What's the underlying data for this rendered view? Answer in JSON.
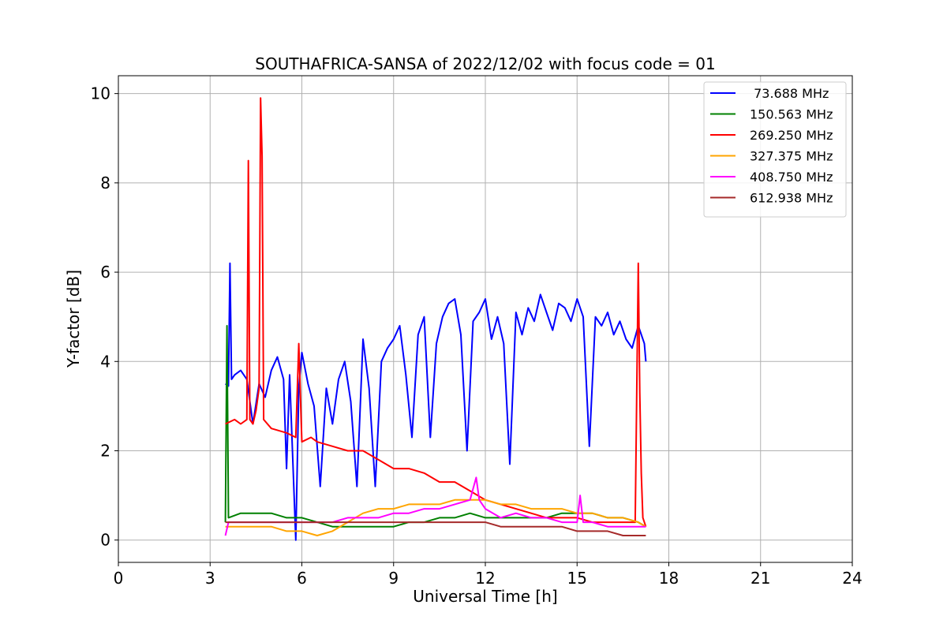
{
  "chart_data": {
    "type": "line",
    "title": "SOUTHAFRICA-SANSA of 2022/12/02 with focus code = 01",
    "xlabel": "Universal Time [h]",
    "ylabel": "Y-factor [dB]",
    "xlim": [
      0,
      24
    ],
    "ylim": [
      -0.5,
      10.4
    ],
    "xticks": [
      0,
      3,
      6,
      9,
      12,
      15,
      18,
      21,
      24
    ],
    "yticks": [
      0,
      2,
      4,
      6,
      8,
      10
    ],
    "grid": true,
    "legend_position": "top-right",
    "series": [
      {
        "name": " 73.688 MHz",
        "color": "#0000ff",
        "points": [
          [
            3.5,
            3.5
          ],
          [
            3.6,
            3.45
          ],
          [
            3.65,
            6.2
          ],
          [
            3.7,
            3.6
          ],
          [
            3.8,
            3.7
          ],
          [
            4.0,
            3.8
          ],
          [
            4.2,
            3.6
          ],
          [
            4.4,
            2.6
          ],
          [
            4.6,
            3.5
          ],
          [
            4.8,
            3.2
          ],
          [
            5.0,
            3.8
          ],
          [
            5.2,
            4.1
          ],
          [
            5.4,
            3.6
          ],
          [
            5.5,
            1.6
          ],
          [
            5.6,
            3.7
          ],
          [
            5.8,
            0.0
          ],
          [
            5.9,
            3.4
          ],
          [
            6.0,
            4.2
          ],
          [
            6.2,
            3.5
          ],
          [
            6.4,
            3.0
          ],
          [
            6.6,
            1.2
          ],
          [
            6.8,
            3.4
          ],
          [
            7.0,
            2.6
          ],
          [
            7.2,
            3.6
          ],
          [
            7.4,
            4.0
          ],
          [
            7.6,
            3.1
          ],
          [
            7.8,
            1.2
          ],
          [
            8.0,
            4.5
          ],
          [
            8.2,
            3.4
          ],
          [
            8.4,
            1.2
          ],
          [
            8.6,
            4.0
          ],
          [
            8.8,
            4.3
          ],
          [
            9.0,
            4.5
          ],
          [
            9.2,
            4.8
          ],
          [
            9.4,
            3.7
          ],
          [
            9.6,
            2.3
          ],
          [
            9.8,
            4.6
          ],
          [
            10.0,
            5.0
          ],
          [
            10.2,
            2.3
          ],
          [
            10.4,
            4.4
          ],
          [
            10.6,
            5.0
          ],
          [
            10.8,
            5.3
          ],
          [
            11.0,
            5.4
          ],
          [
            11.2,
            4.6
          ],
          [
            11.4,
            2.0
          ],
          [
            11.6,
            4.9
          ],
          [
            11.8,
            5.1
          ],
          [
            12.0,
            5.4
          ],
          [
            12.2,
            4.5
          ],
          [
            12.4,
            5.0
          ],
          [
            12.6,
            4.4
          ],
          [
            12.8,
            1.7
          ],
          [
            13.0,
            5.1
          ],
          [
            13.2,
            4.6
          ],
          [
            13.4,
            5.2
          ],
          [
            13.6,
            4.9
          ],
          [
            13.8,
            5.5
          ],
          [
            14.0,
            5.1
          ],
          [
            14.2,
            4.7
          ],
          [
            14.4,
            5.3
          ],
          [
            14.6,
            5.2
          ],
          [
            14.8,
            4.9
          ],
          [
            15.0,
            5.4
          ],
          [
            15.2,
            5.0
          ],
          [
            15.4,
            2.1
          ],
          [
            15.6,
            5.0
          ],
          [
            15.8,
            4.8
          ],
          [
            16.0,
            5.1
          ],
          [
            16.2,
            4.6
          ],
          [
            16.4,
            4.9
          ],
          [
            16.6,
            4.5
          ],
          [
            16.8,
            4.3
          ],
          [
            17.0,
            4.8
          ],
          [
            17.2,
            4.4
          ],
          [
            17.25,
            4.0
          ]
        ]
      },
      {
        "name": "150.563 MHz",
        "color": "#008000",
        "points": [
          [
            3.5,
            0.4
          ],
          [
            3.55,
            4.8
          ],
          [
            3.6,
            0.5
          ],
          [
            4.0,
            0.6
          ],
          [
            4.5,
            0.6
          ],
          [
            5.0,
            0.6
          ],
          [
            5.5,
            0.5
          ],
          [
            6.0,
            0.5
          ],
          [
            6.5,
            0.4
          ],
          [
            7.0,
            0.3
          ],
          [
            7.5,
            0.3
          ],
          [
            8.0,
            0.3
          ],
          [
            8.5,
            0.3
          ],
          [
            9.0,
            0.3
          ],
          [
            9.5,
            0.4
          ],
          [
            10.0,
            0.4
          ],
          [
            10.5,
            0.5
          ],
          [
            11.0,
            0.5
          ],
          [
            11.5,
            0.6
          ],
          [
            12.0,
            0.5
          ],
          [
            12.5,
            0.5
          ],
          [
            13.0,
            0.5
          ],
          [
            13.5,
            0.5
          ],
          [
            14.0,
            0.5
          ],
          [
            14.5,
            0.6
          ],
          [
            15.0,
            0.6
          ],
          [
            15.5,
            0.6
          ],
          [
            16.0,
            0.5
          ],
          [
            16.5,
            0.5
          ],
          [
            17.0,
            0.4
          ],
          [
            17.25,
            0.3
          ]
        ]
      },
      {
        "name": "269.250 MHz",
        "color": "#ff0000",
        "points": [
          [
            3.5,
            2.6
          ],
          [
            3.8,
            2.7
          ],
          [
            4.0,
            2.6
          ],
          [
            4.2,
            2.7
          ],
          [
            4.25,
            8.5
          ],
          [
            4.3,
            2.7
          ],
          [
            4.4,
            2.6
          ],
          [
            4.5,
            2.9
          ],
          [
            4.6,
            3.4
          ],
          [
            4.65,
            9.9
          ],
          [
            4.7,
            8.6
          ],
          [
            4.75,
            2.7
          ],
          [
            5.0,
            2.5
          ],
          [
            5.5,
            2.4
          ],
          [
            5.8,
            2.3
          ],
          [
            5.9,
            4.4
          ],
          [
            6.0,
            2.2
          ],
          [
            6.3,
            2.3
          ],
          [
            6.5,
            2.2
          ],
          [
            7.0,
            2.1
          ],
          [
            7.5,
            2.0
          ],
          [
            8.0,
            2.0
          ],
          [
            8.5,
            1.8
          ],
          [
            9.0,
            1.6
          ],
          [
            9.5,
            1.6
          ],
          [
            10.0,
            1.5
          ],
          [
            10.5,
            1.3
          ],
          [
            11.0,
            1.3
          ],
          [
            11.5,
            1.1
          ],
          [
            12.0,
            0.9
          ],
          [
            12.5,
            0.8
          ],
          [
            13.0,
            0.7
          ],
          [
            13.5,
            0.6
          ],
          [
            14.0,
            0.5
          ],
          [
            14.5,
            0.5
          ],
          [
            15.0,
            0.5
          ],
          [
            15.5,
            0.4
          ],
          [
            16.0,
            0.4
          ],
          [
            16.5,
            0.4
          ],
          [
            16.9,
            0.4
          ],
          [
            17.0,
            6.2
          ],
          [
            17.05,
            3.3
          ],
          [
            17.1,
            1.5
          ],
          [
            17.15,
            0.5
          ],
          [
            17.25,
            0.3
          ]
        ]
      },
      {
        "name": "327.375 MHz",
        "color": "#ffa500",
        "points": [
          [
            3.5,
            0.3
          ],
          [
            4.0,
            0.3
          ],
          [
            4.5,
            0.3
          ],
          [
            5.0,
            0.3
          ],
          [
            5.5,
            0.2
          ],
          [
            6.0,
            0.2
          ],
          [
            6.5,
            0.1
          ],
          [
            7.0,
            0.2
          ],
          [
            7.5,
            0.4
          ],
          [
            8.0,
            0.6
          ],
          [
            8.5,
            0.7
          ],
          [
            9.0,
            0.7
          ],
          [
            9.5,
            0.8
          ],
          [
            10.0,
            0.8
          ],
          [
            10.5,
            0.8
          ],
          [
            11.0,
            0.9
          ],
          [
            11.5,
            0.9
          ],
          [
            12.0,
            0.9
          ],
          [
            12.5,
            0.8
          ],
          [
            13.0,
            0.8
          ],
          [
            13.5,
            0.7
          ],
          [
            14.0,
            0.7
          ],
          [
            14.5,
            0.7
          ],
          [
            15.0,
            0.6
          ],
          [
            15.5,
            0.6
          ],
          [
            16.0,
            0.5
          ],
          [
            16.5,
            0.5
          ],
          [
            17.0,
            0.4
          ],
          [
            17.25,
            0.3
          ]
        ]
      },
      {
        "name": "408.750 MHz",
        "color": "#ff00ff",
        "points": [
          [
            3.5,
            0.1
          ],
          [
            3.6,
            0.4
          ],
          [
            4.0,
            0.4
          ],
          [
            4.5,
            0.4
          ],
          [
            5.0,
            0.4
          ],
          [
            5.5,
            0.4
          ],
          [
            6.0,
            0.4
          ],
          [
            6.5,
            0.4
          ],
          [
            7.0,
            0.4
          ],
          [
            7.5,
            0.5
          ],
          [
            8.0,
            0.5
          ],
          [
            8.5,
            0.5
          ],
          [
            9.0,
            0.6
          ],
          [
            9.5,
            0.6
          ],
          [
            10.0,
            0.7
          ],
          [
            10.5,
            0.7
          ],
          [
            11.0,
            0.8
          ],
          [
            11.5,
            0.9
          ],
          [
            11.7,
            1.4
          ],
          [
            11.8,
            0.9
          ],
          [
            12.0,
            0.7
          ],
          [
            12.5,
            0.5
          ],
          [
            13.0,
            0.6
          ],
          [
            13.5,
            0.5
          ],
          [
            14.0,
            0.5
          ],
          [
            14.5,
            0.4
          ],
          [
            15.0,
            0.4
          ],
          [
            15.1,
            1.0
          ],
          [
            15.2,
            0.4
          ],
          [
            15.5,
            0.4
          ],
          [
            16.0,
            0.3
          ],
          [
            16.5,
            0.3
          ],
          [
            17.0,
            0.3
          ],
          [
            17.25,
            0.3
          ]
        ]
      },
      {
        "name": "612.938 MHz",
        "color": "#a52a2a",
        "points": [
          [
            3.5,
            0.4
          ],
          [
            4.0,
            0.4
          ],
          [
            4.5,
            0.4
          ],
          [
            5.0,
            0.4
          ],
          [
            5.5,
            0.4
          ],
          [
            6.0,
            0.4
          ],
          [
            6.5,
            0.4
          ],
          [
            7.0,
            0.4
          ],
          [
            7.5,
            0.4
          ],
          [
            8.0,
            0.4
          ],
          [
            8.5,
            0.4
          ],
          [
            9.0,
            0.4
          ],
          [
            9.5,
            0.4
          ],
          [
            10.0,
            0.4
          ],
          [
            10.5,
            0.4
          ],
          [
            11.0,
            0.4
          ],
          [
            11.5,
            0.4
          ],
          [
            12.0,
            0.4
          ],
          [
            12.5,
            0.3
          ],
          [
            13.0,
            0.3
          ],
          [
            13.5,
            0.3
          ],
          [
            14.0,
            0.3
          ],
          [
            14.5,
            0.3
          ],
          [
            15.0,
            0.2
          ],
          [
            15.5,
            0.2
          ],
          [
            16.0,
            0.2
          ],
          [
            16.5,
            0.1
          ],
          [
            17.0,
            0.1
          ],
          [
            17.25,
            0.1
          ]
        ]
      }
    ]
  }
}
